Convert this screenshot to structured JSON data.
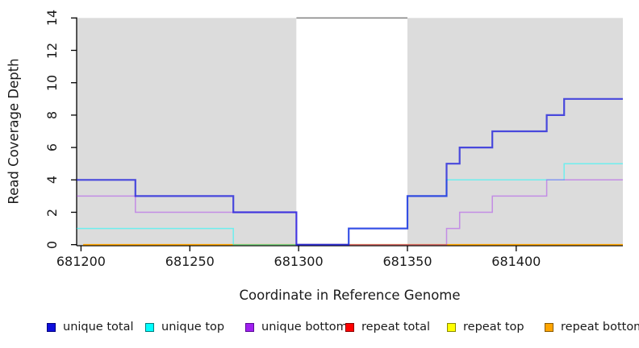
{
  "chart_data": {
    "type": "line",
    "subtype": "step",
    "title": "",
    "xlabel": "Coordinate in Reference Genome",
    "ylabel": "Read Coverage Depth",
    "xlim": [
      681198,
      681449
    ],
    "ylim": [
      0,
      14
    ],
    "x_ticks": [
      681200,
      681250,
      681300,
      681350,
      681400
    ],
    "y_ticks": [
      0,
      2,
      4,
      6,
      8,
      10,
      12,
      14
    ],
    "grid": false,
    "legend_position": "bottom",
    "axis_color": "#000000",
    "text_color": "#1a1a1a",
    "background_regions": [
      {
        "name": "unique-region-left",
        "from": 681198,
        "to": 681299,
        "fill": "#dcdcdc"
      },
      {
        "name": "repeat-region-gap",
        "from": 681299,
        "to": 681350,
        "fill": "#ffffff",
        "top_border": "#8a8a8a"
      },
      {
        "name": "unique-region-right",
        "from": 681350,
        "to": 681449,
        "fill": "#dcdcdc"
      }
    ],
    "series": [
      {
        "id": "unique-total",
        "label": "unique total",
        "color": "#0f0fdc",
        "swatch_border": "#000080",
        "alpha": 0.72,
        "width": 2.2,
        "draw_order": 6,
        "end": 681449,
        "steps": [
          [
            681198,
            4
          ],
          [
            681225,
            3
          ],
          [
            681270,
            2
          ],
          [
            681299,
            0
          ],
          [
            681323,
            1
          ],
          [
            681350,
            3
          ],
          [
            681368,
            5
          ],
          [
            681374,
            6
          ],
          [
            681389,
            7
          ],
          [
            681414,
            8
          ],
          [
            681422,
            9
          ]
        ]
      },
      {
        "id": "unique-top",
        "label": "unique top",
        "color": "#00ffff",
        "swatch_border": "#007d7d",
        "alpha": 0.5,
        "width": 1.5,
        "draw_order": 4,
        "end": 681449,
        "steps": [
          [
            681198,
            1
          ],
          [
            681270,
            0
          ],
          [
            681323,
            1
          ],
          [
            681350,
            3
          ],
          [
            681368,
            4
          ],
          [
            681422,
            5
          ]
        ]
      },
      {
        "id": "unique-bottom",
        "label": "unique bottom",
        "color": "#a020f0",
        "swatch_border": "#5a0a96",
        "alpha": 0.42,
        "width": 1.5,
        "draw_order": 5,
        "end": 681449,
        "steps": [
          [
            681198,
            3
          ],
          [
            681225,
            2
          ],
          [
            681299,
            0
          ],
          [
            681368,
            1
          ],
          [
            681374,
            2
          ],
          [
            681389,
            3
          ],
          [
            681414,
            4
          ]
        ]
      },
      {
        "id": "repeat-total",
        "label": "repeat total",
        "color": "#ff0000",
        "swatch_border": "#8b0000",
        "alpha": 0.5,
        "width": 1.4,
        "draw_order": 1,
        "end": 681449,
        "steps": [
          [
            681201,
            0
          ]
        ]
      },
      {
        "id": "repeat-top",
        "label": "repeat top",
        "color": "#ffff00",
        "swatch_border": "#8b8b00",
        "alpha": 0.5,
        "width": 1.4,
        "draw_order": 2,
        "end": 681449,
        "steps": [
          [
            681201,
            0
          ]
        ]
      },
      {
        "id": "repeat-bottom",
        "label": "repeat bottom",
        "color": "#ffa500",
        "swatch_border": "#8a5a00",
        "alpha": 0.9,
        "width": 1.6,
        "draw_order": 3,
        "end": 681449,
        "steps": [
          [
            681201,
            0
          ]
        ]
      }
    ]
  }
}
